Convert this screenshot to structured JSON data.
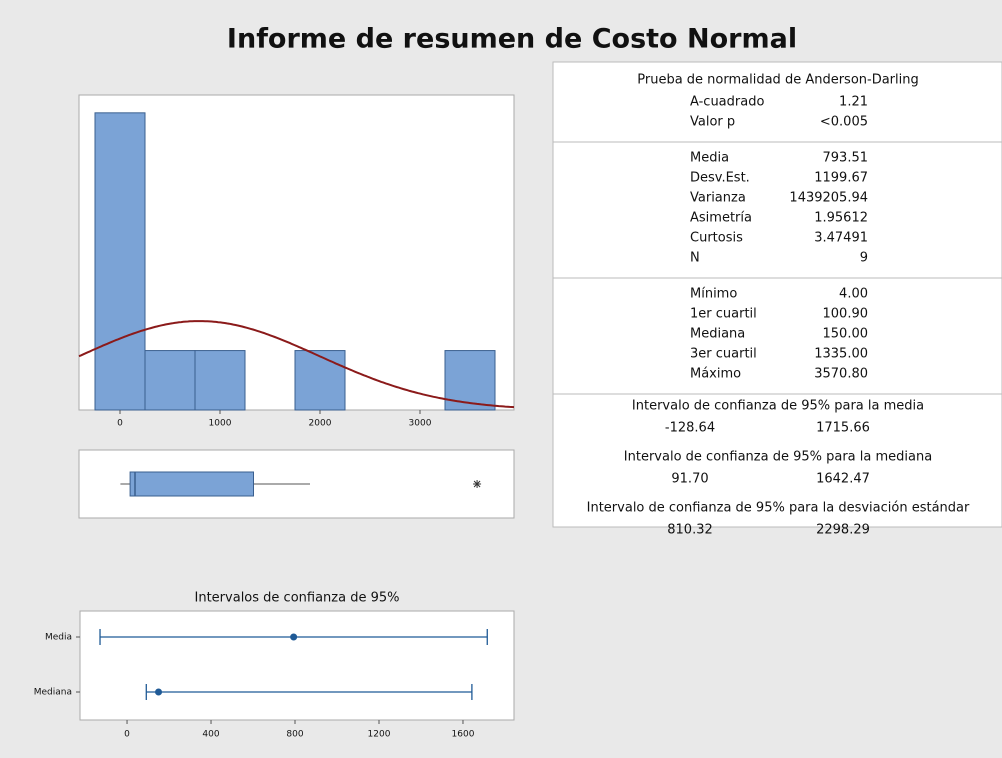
{
  "title": "Informe de resumen de Costo Normal",
  "chart_data": [
    {
      "type": "histogram",
      "bins": [
        -250,
        250,
        750,
        1250,
        1750,
        2250,
        2750,
        3250,
        3750
      ],
      "values": [
        5,
        1,
        1,
        0,
        1,
        0,
        0,
        1
      ],
      "color": "#7ba3d6",
      "xlim": [
        -410,
        3940
      ],
      "xticks": [
        0,
        1000,
        2000,
        3000
      ],
      "ylim": [
        0,
        5.3
      ],
      "fit": {
        "mean": 793.51,
        "sd": 1199.67,
        "color": "#8b1a1a"
      }
    },
    {
      "type": "box",
      "whisker_low": 4,
      "q1": 100.9,
      "median": 150,
      "q3": 1335,
      "whisker_high": 1900,
      "outliers": [
        3570.8
      ],
      "color": "#7ba3d6",
      "xlim": [
        -410,
        3940
      ]
    },
    {
      "type": "interval",
      "title": "Intervalos de confianza de 95%",
      "categories": [
        "Media",
        "Mediana"
      ],
      "values": [
        793.51,
        150
      ],
      "lower": [
        -128.64,
        91.7
      ],
      "upper": [
        1715.66,
        1642.47
      ],
      "color": "#1f5a96",
      "xlim": [
        -224,
        1843
      ],
      "xticks": [
        0,
        400,
        800,
        1200,
        1600
      ]
    }
  ],
  "stats": {
    "groups": [
      {
        "title": "Prueba de normalidad de Anderson-Darling",
        "rows": [
          [
            "A-cuadrado",
            "1.21"
          ],
          [
            "Valor p",
            "<0.005"
          ]
        ]
      },
      {
        "rows": [
          [
            "Media",
            "793.51"
          ],
          [
            "Desv.Est.",
            "1199.67"
          ],
          [
            "Varianza",
            "1439205.94"
          ],
          [
            "Asimetría",
            "1.95612"
          ],
          [
            "Curtosis",
            "3.47491"
          ],
          [
            "N",
            "9"
          ]
        ]
      },
      {
        "rows": [
          [
            "Mínimo",
            "4.00"
          ],
          [
            "1er cuartil",
            "100.90"
          ],
          [
            "Mediana",
            "150.00"
          ],
          [
            "3er cuartil",
            "1335.00"
          ],
          [
            "Máximo",
            "3570.80"
          ]
        ]
      }
    ],
    "intervals": [
      {
        "title": "Intervalo de confianza de 95% para la media",
        "low": "-128.64",
        "high": "1715.66"
      },
      {
        "title": "Intervalo de confianza de 95% para la mediana",
        "low": "91.70",
        "high": "1642.47"
      },
      {
        "title": "Intervalo de confianza de 95% para la desviación estándar",
        "low": "810.32",
        "high": "2298.29"
      }
    ]
  }
}
